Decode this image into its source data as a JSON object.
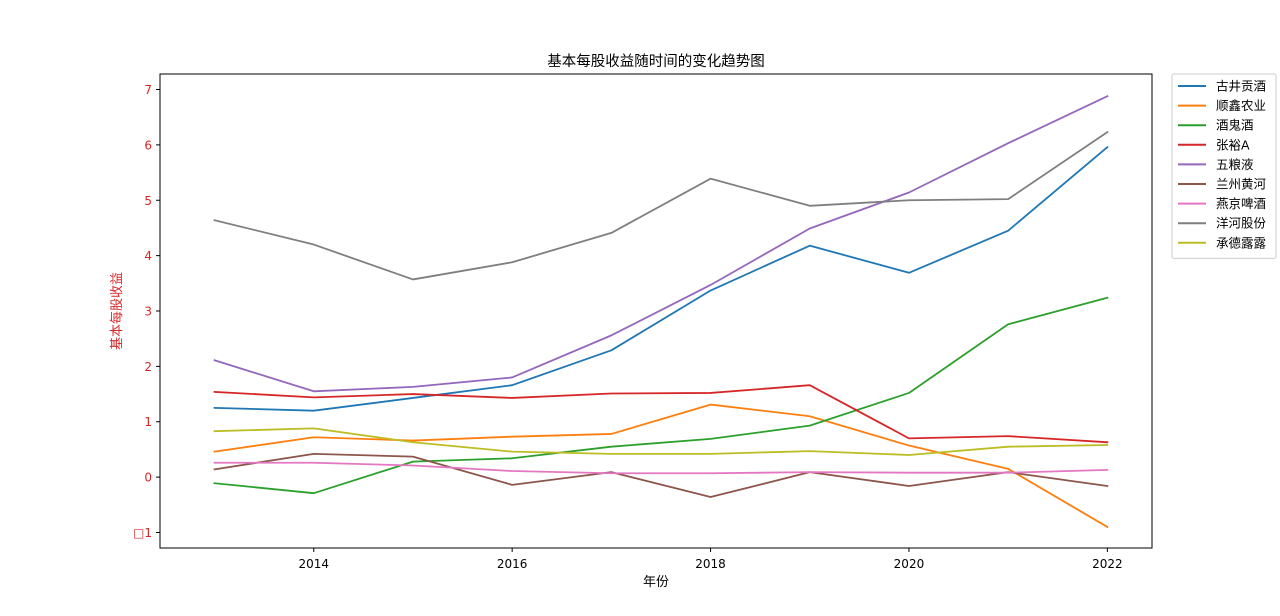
{
  "chart_data": {
    "type": "line",
    "title": "基本每股收益随时间的变化趋势图",
    "xlabel": "年份",
    "ylabel": "基本每股收益",
    "x": [
      2013,
      2014,
      2015,
      2016,
      2017,
      2018,
      2019,
      2020,
      2021,
      2022
    ],
    "xlim": [
      2012.45,
      2022.45
    ],
    "ylim": [
      -1.28,
      7.28
    ],
    "x_ticks": [
      2014,
      2016,
      2018,
      2020,
      2022
    ],
    "x_tick_labels": [
      "2014",
      "2016",
      "2018",
      "2020",
      "2022"
    ],
    "y_ticks": [
      -1,
      0,
      1,
      2,
      3,
      4,
      5,
      6,
      7
    ],
    "y_tick_labels": [
      "□1",
      "0",
      "1",
      "2",
      "3",
      "4",
      "5",
      "6",
      "7"
    ],
    "grid": false,
    "legend_position": "outside-top-right",
    "series": [
      {
        "name": "古井贡酒",
        "color": "#1f77b4",
        "values": [
          1.25,
          1.2,
          1.43,
          1.66,
          2.29,
          3.37,
          4.18,
          3.69,
          4.45,
          5.96
        ]
      },
      {
        "name": "顺鑫农业",
        "color": "#ff7f0e",
        "values": [
          0.46,
          0.72,
          0.66,
          0.73,
          0.78,
          1.31,
          1.1,
          0.57,
          0.15,
          -0.9
        ]
      },
      {
        "name": "酒鬼酒",
        "color": "#2ca02c",
        "values": [
          -0.11,
          -0.29,
          0.28,
          0.34,
          0.55,
          0.69,
          0.93,
          1.52,
          2.76,
          3.24
        ]
      },
      {
        "name": "张裕A",
        "color": "#d62728",
        "values": [
          1.54,
          1.44,
          1.5,
          1.43,
          1.51,
          1.52,
          1.66,
          0.7,
          0.74,
          0.63
        ]
      },
      {
        "name": "五粮液",
        "color": "#9467bd",
        "values": [
          2.11,
          1.55,
          1.63,
          1.8,
          2.56,
          3.47,
          4.49,
          5.14,
          6.03,
          6.88
        ]
      },
      {
        "name": "兰州黄河",
        "color": "#8c564b",
        "values": [
          0.14,
          0.42,
          0.37,
          -0.14,
          0.09,
          -0.36,
          0.09,
          -0.16,
          0.09,
          -0.16
        ]
      },
      {
        "name": "燕京啤酒",
        "color": "#e377c2",
        "values": [
          0.26,
          0.26,
          0.21,
          0.11,
          0.07,
          0.07,
          0.09,
          0.08,
          0.08,
          0.13
        ]
      },
      {
        "name": "洋河股份",
        "color": "#7f7f7f",
        "values": [
          4.64,
          4.2,
          3.57,
          3.88,
          4.41,
          5.39,
          4.9,
          5.0,
          5.02,
          6.23
        ]
      },
      {
        "name": "承德露露",
        "color": "#bcbd22",
        "values": [
          0.83,
          0.88,
          0.63,
          0.46,
          0.42,
          0.42,
          0.47,
          0.4,
          0.55,
          0.58
        ]
      }
    ],
    "colors": {
      "axis": "#000000",
      "ylabel": "#d62728",
      "ytick": "#d62728",
      "legend_border": "#cccccc"
    }
  }
}
